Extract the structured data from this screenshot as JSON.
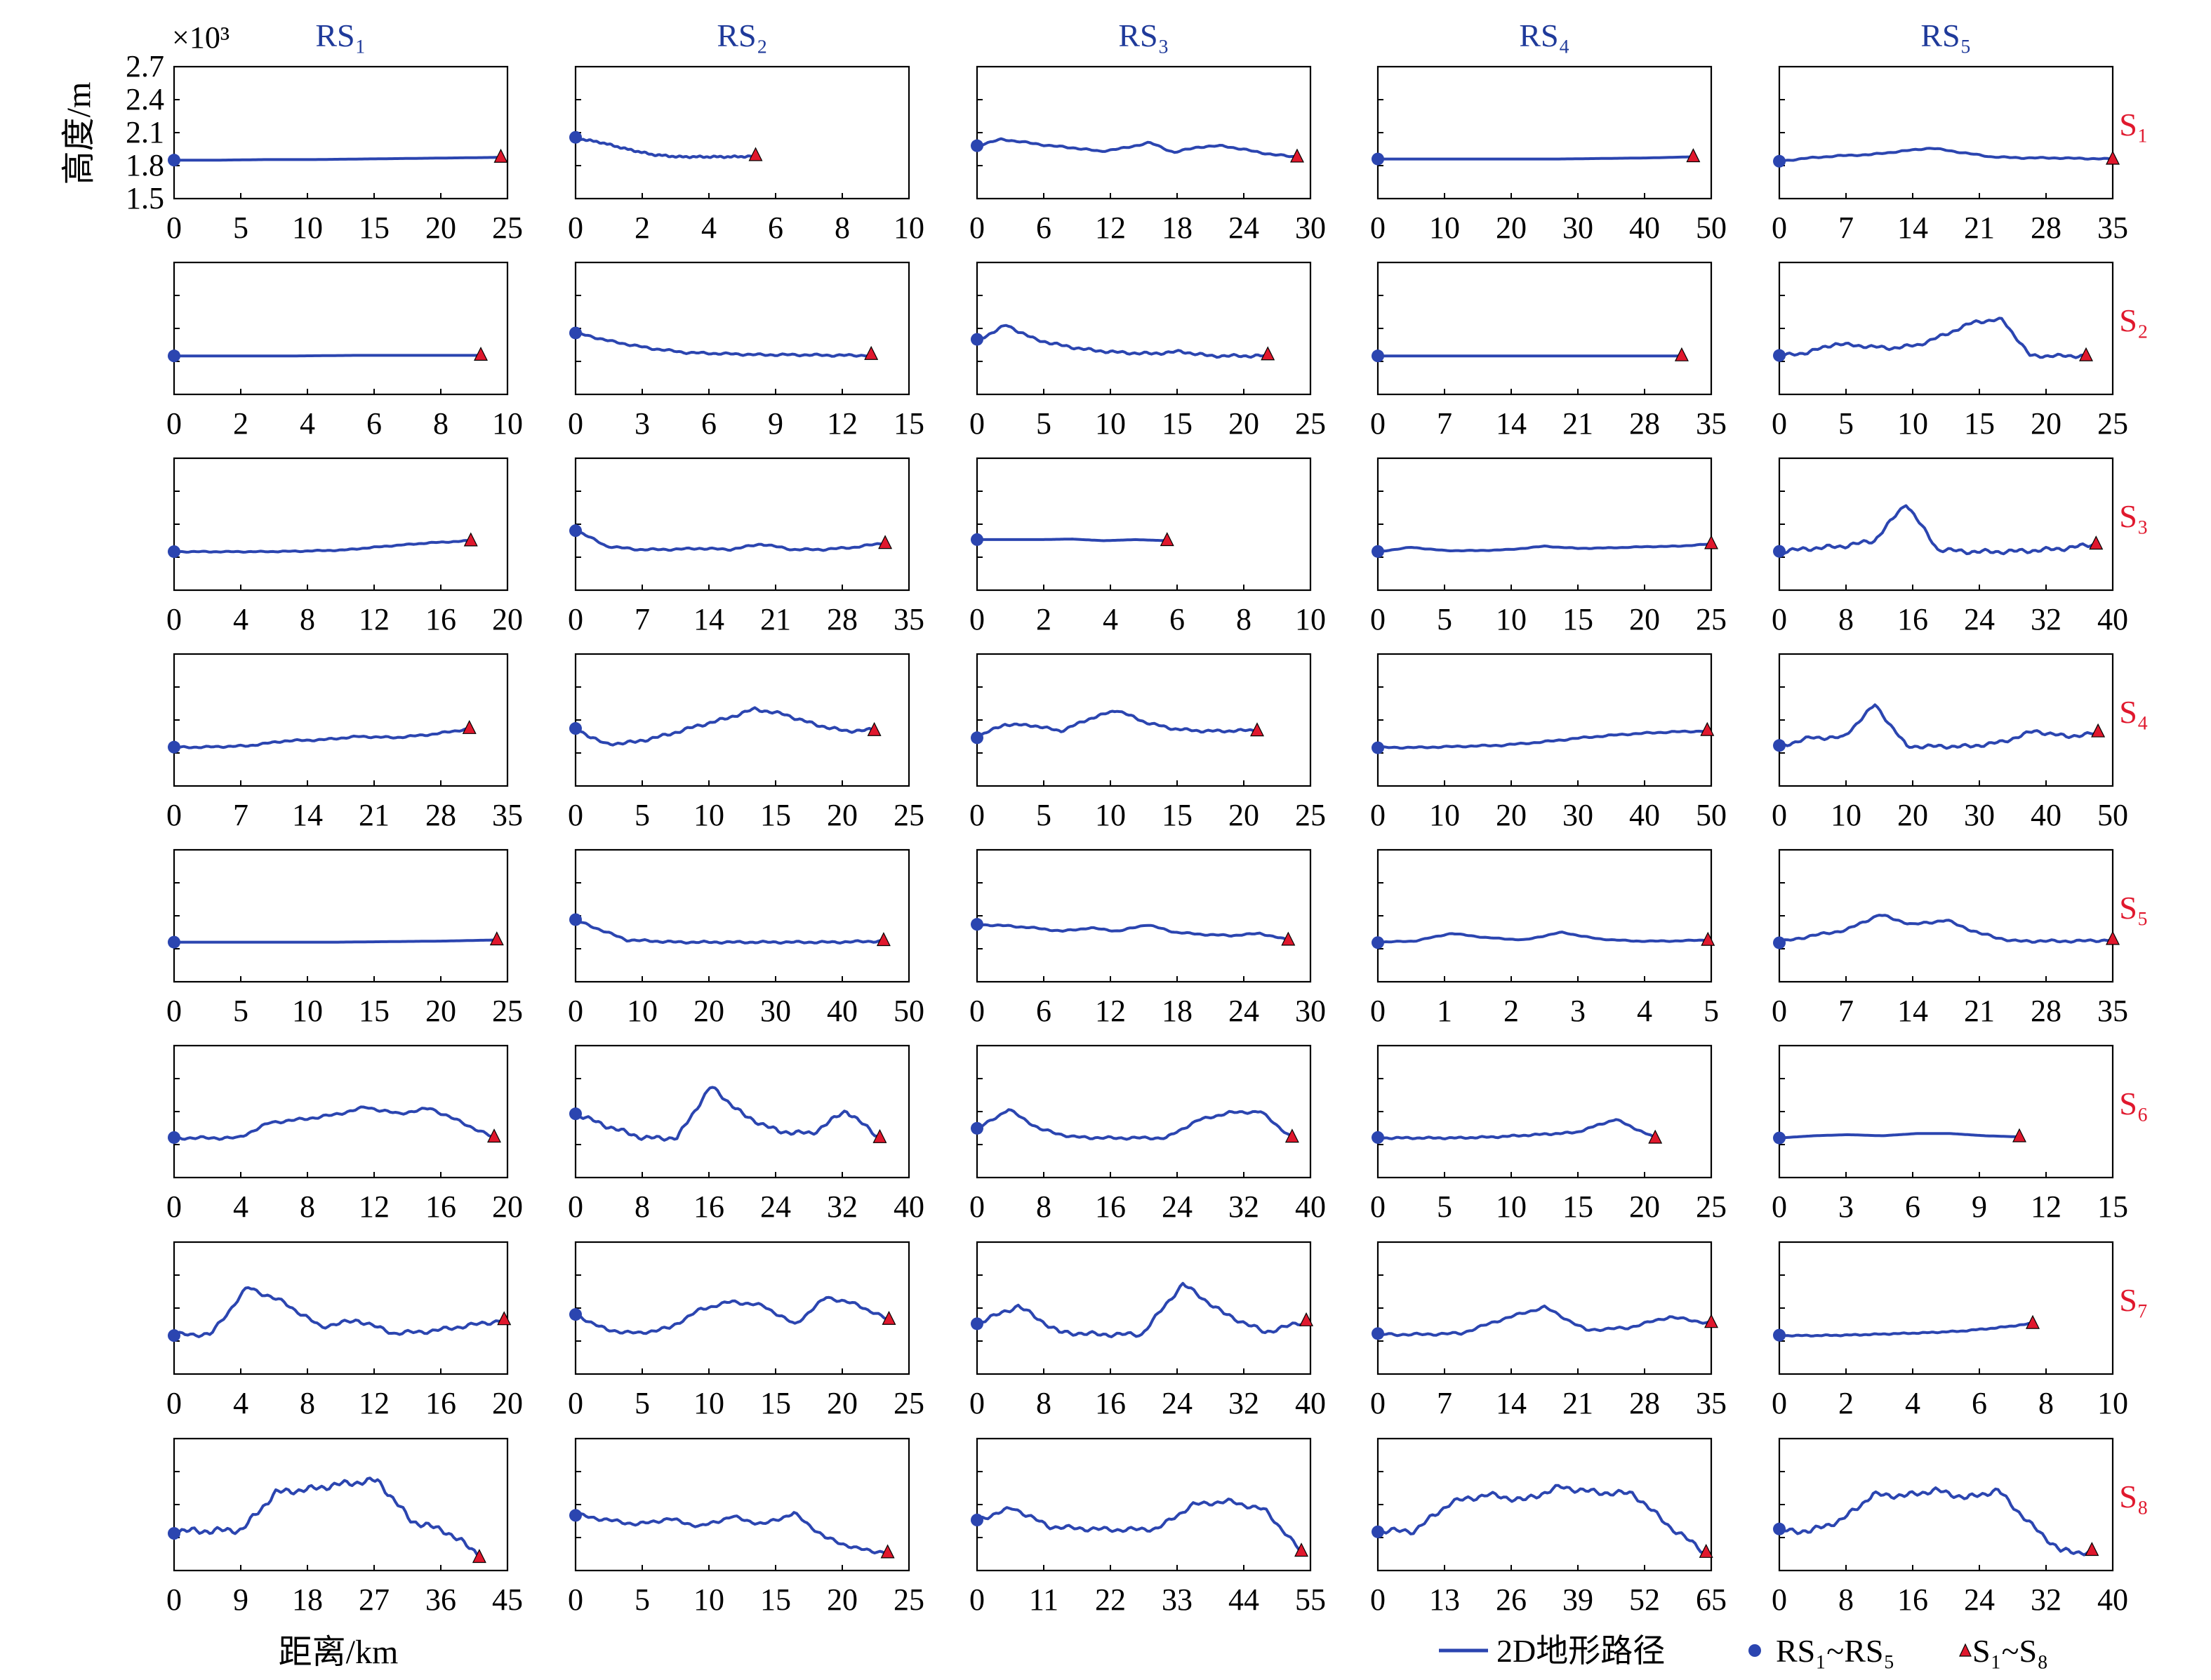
{
  "figure": {
    "y_axis_title": "高度/m",
    "y_axis_multiplier": "×10³",
    "y_ticks": [
      "2.7",
      "2.4",
      "2.1",
      "1.8",
      "1.5"
    ],
    "x_axis_title": "距离/km",
    "legend": {
      "line_label": "2D地形路径",
      "dot_label": "RS₁~RS₅",
      "triangle_label": "S₁~S₈"
    },
    "colors": {
      "line": "#2b45b0",
      "receiver": "#2b45b0",
      "source": "#e0182d",
      "col_title": "#1f3a9a",
      "row_label": "#e0182d"
    }
  },
  "chart_data": {
    "type": "line",
    "title": "",
    "xlabel": "距离/km",
    "ylabel": "高度/m",
    "ylim": [
      1500,
      2700
    ],
    "columns": [
      "RS₁",
      "RS₂",
      "RS₃",
      "RS₄",
      "RS₅"
    ],
    "rows": [
      "S₁",
      "S₂",
      "S₃",
      "S₄",
      "S₅",
      "S₆",
      "S₇",
      "S₈"
    ],
    "panels": [
      [
        {
          "xticks": [
            0,
            5,
            10,
            15,
            20,
            25
          ],
          "end": 24.5,
          "shape": [
            1850,
            1850,
            1855,
            1855,
            1860,
            1865,
            1870,
            1875
          ]
        },
        {
          "xticks": [
            0,
            2,
            4,
            6,
            8,
            10
          ],
          "end": 5.4,
          "shape": [
            2050,
            2010,
            1950,
            1900,
            1880,
            1880,
            1880,
            1885
          ]
        },
        {
          "xticks": [
            0,
            6,
            12,
            18,
            24,
            30
          ],
          "end": 28.8,
          "shape": [
            1980,
            2040,
            2010,
            1980,
            1960,
            1930,
            1960,
            2010,
            1920,
            1970,
            1980,
            1940,
            1900,
            1880
          ]
        },
        {
          "xticks": [
            0,
            10,
            20,
            30,
            40,
            50
          ],
          "end": 47.3,
          "shape": [
            1860,
            1860,
            1860,
            1860,
            1860,
            1865,
            1870,
            1880
          ]
        },
        {
          "xticks": [
            0,
            7,
            14,
            21,
            28,
            35
          ],
          "end": 35,
          "shape": [
            1840,
            1870,
            1890,
            1900,
            1930,
            1960,
            1920,
            1880,
            1870,
            1870,
            1865,
            1860
          ]
        }
      ],
      [
        {
          "xticks": [
            0,
            2,
            4,
            6,
            8,
            10
          ],
          "end": 9.2,
          "shape": [
            1850,
            1850,
            1850,
            1855,
            1855,
            1855
          ]
        },
        {
          "xticks": [
            0,
            3,
            6,
            9,
            12,
            15
          ],
          "end": 13.3,
          "shape": [
            2060,
            1980,
            1920,
            1880,
            1870,
            1860,
            1860,
            1855,
            1855
          ]
        },
        {
          "xticks": [
            0,
            5,
            10,
            15,
            20,
            25
          ],
          "end": 21.8,
          "shape": [
            1990,
            2130,
            2000,
            1940,
            1900,
            1880,
            1870,
            1890,
            1850,
            1850,
            1850
          ]
        },
        {
          "xticks": [
            0,
            7,
            14,
            21,
            28,
            35
          ],
          "end": 31.9,
          "shape": [
            1850,
            1850,
            1850,
            1850,
            1850,
            1850
          ]
        },
        {
          "xticks": [
            0,
            5,
            10,
            15,
            20,
            25
          ],
          "end": 23,
          "shape": [
            1850,
            1880,
            1960,
            1940,
            1920,
            1950,
            2050,
            2160,
            2180,
            1850,
            1850,
            1850
          ]
        }
      ],
      [
        {
          "xticks": [
            0,
            4,
            8,
            12,
            16,
            20
          ],
          "end": 17.8,
          "shape": [
            1850,
            1850,
            1850,
            1855,
            1865,
            1900,
            1930,
            1950
          ]
        },
        {
          "xticks": [
            0,
            7,
            14,
            21,
            28,
            35
          ],
          "end": 32.5,
          "shape": [
            2050,
            1900,
            1870,
            1870,
            1880,
            1870,
            1920,
            1870,
            1870,
            1890,
            1930
          ]
        },
        {
          "xticks": [
            0,
            2,
            4,
            6,
            8,
            10
          ],
          "end": 5.7,
          "shape": [
            1960,
            1960,
            1960,
            1965,
            1950,
            1960,
            1950
          ]
        },
        {
          "xticks": [
            0,
            5,
            10,
            15,
            20,
            25
          ],
          "end": 25,
          "shape": [
            1850,
            1890,
            1860,
            1860,
            1870,
            1900,
            1880,
            1885,
            1895,
            1900,
            1920
          ]
        },
        {
          "xticks": [
            0,
            8,
            16,
            24,
            32,
            40
          ],
          "end": 38,
          "shape": [
            1850,
            1880,
            1900,
            1950,
            2290,
            1870,
            1850,
            1850,
            1860,
            1880,
            1920
          ]
        }
      ],
      [
        {
          "xticks": [
            0,
            7,
            14,
            21,
            28,
            35
          ],
          "end": 31,
          "shape": [
            1850,
            1855,
            1865,
            1910,
            1920,
            1950,
            1940,
            1970,
            2020
          ]
        },
        {
          "xticks": [
            0,
            5,
            10,
            15,
            20,
            25
          ],
          "end": 22.4,
          "shape": [
            2020,
            1880,
            1900,
            1960,
            2040,
            2110,
            2200,
            2150,
            2060,
            2000,
            2010
          ]
        },
        {
          "xticks": [
            0,
            5,
            10,
            15,
            20,
            25
          ],
          "end": 21,
          "shape": [
            1950,
            2060,
            2050,
            2000,
            2110,
            2190,
            2080,
            2020,
            2000,
            2000,
            2010
          ]
        },
        {
          "xticks": [
            0,
            10,
            20,
            30,
            40,
            50
          ],
          "end": 49.4,
          "shape": [
            1850,
            1850,
            1860,
            1870,
            1900,
            1940,
            1970,
            1990,
            2000
          ]
        },
        {
          "xticks": [
            0,
            10,
            20,
            30,
            40,
            50
          ],
          "end": 47.8,
          "shape": [
            1860,
            1940,
            1940,
            2240,
            1860,
            1860,
            1860,
            1900,
            2000,
            1950,
            1980
          ]
        }
      ],
      [
        {
          "xticks": [
            0,
            5,
            10,
            15,
            20,
            25
          ],
          "end": 24.2,
          "shape": [
            1860,
            1860,
            1860,
            1860,
            1865,
            1870,
            1880
          ]
        },
        {
          "xticks": [
            0,
            10,
            20,
            30,
            40,
            50
          ],
          "end": 46.2,
          "shape": [
            2060,
            1880,
            1860,
            1860,
            1860,
            1860,
            1870
          ]
        },
        {
          "xticks": [
            0,
            6,
            12,
            18,
            24,
            30
          ],
          "end": 28,
          "shape": [
            2020,
            2010,
            1990,
            1960,
            1990,
            1960,
            2020,
            1950,
            1930,
            1920,
            1940,
            1880
          ]
        },
        {
          "xticks": [
            0,
            1,
            2,
            3,
            4,
            5
          ],
          "end": 4.95,
          "shape": [
            1860,
            1870,
            1940,
            1900,
            1880,
            1950,
            1890,
            1870,
            1870,
            1880
          ]
        },
        {
          "xticks": [
            0,
            7,
            14,
            21,
            28,
            35
          ],
          "end": 35,
          "shape": [
            1860,
            1920,
            1970,
            2110,
            2020,
            2060,
            1940,
            1870,
            1870,
            1870,
            1880
          ]
        }
      ],
      [
        {
          "xticks": [
            0,
            4,
            8,
            12,
            16,
            20
          ],
          "end": 19.2,
          "shape": [
            1860,
            1860,
            1860,
            2000,
            2030,
            2070,
            2140,
            2080,
            2130,
            2000,
            1860
          ]
        },
        {
          "xticks": [
            0,
            8,
            16,
            24,
            32,
            40
          ],
          "end": 36.5,
          "shape": [
            2080,
            1960,
            1860,
            1860,
            2330,
            2060,
            1920,
            1900,
            2110,
            1860
          ]
        },
        {
          "xticks": [
            0,
            8,
            16,
            24,
            32,
            40
          ],
          "end": 37.8,
          "shape": [
            1940,
            2120,
            1940,
            1870,
            1860,
            1860,
            1860,
            2020,
            2090,
            2100,
            1860
          ]
        },
        {
          "xticks": [
            0,
            5,
            10,
            15,
            20,
            25
          ],
          "end": 20.8,
          "shape": [
            1860,
            1860,
            1860,
            1870,
            1890,
            1910,
            2030,
            1860
          ]
        },
        {
          "xticks": [
            0,
            3,
            6,
            9,
            12,
            15
          ],
          "end": 10.8,
          "shape": [
            1860,
            1880,
            1890,
            1880,
            1900,
            1900,
            1880,
            1870
          ]
        }
      ],
      [
        {
          "xticks": [
            0,
            4,
            8,
            12,
            16,
            20
          ],
          "end": 19.8,
          "shape": [
            1860,
            1860,
            2290,
            2150,
            1930,
            1990,
            1870,
            1890,
            1940,
            1990
          ]
        },
        {
          "xticks": [
            0,
            5,
            10,
            15,
            20,
            25
          ],
          "end": 23.5,
          "shape": [
            2040,
            1900,
            1870,
            1920,
            2090,
            2160,
            2120,
            1950,
            2200,
            2130,
            1990
          ]
        },
        {
          "xticks": [
            0,
            8,
            16,
            24,
            32,
            40
          ],
          "end": 39.5,
          "shape": [
            1960,
            2120,
            1880,
            1860,
            1860,
            2320,
            2050,
            1880,
            1980
          ]
        },
        {
          "xticks": [
            0,
            7,
            14,
            21,
            28,
            35
          ],
          "end": 35,
          "shape": [
            1860,
            1860,
            1870,
            2000,
            2110,
            1900,
            1920,
            2020,
            1960
          ]
        },
        {
          "xticks": [
            0,
            2,
            4,
            6,
            8,
            10
          ],
          "end": 7.6,
          "shape": [
            1850,
            1850,
            1855,
            1865,
            1875,
            1890,
            1920,
            1960
          ]
        }
      ],
      [
        {
          "xticks": [
            0,
            9,
            18,
            27,
            36,
            45
          ],
          "end": 41.2,
          "shape": [
            1860,
            1860,
            1870,
            2210,
            2240,
            2290,
            2320,
            1950,
            1860,
            1650
          ]
        },
        {
          "xticks": [
            0,
            5,
            10,
            15,
            20,
            25
          ],
          "end": 23.4,
          "shape": [
            2010,
            1960,
            1920,
            1970,
            1900,
            1990,
            1920,
            2020,
            1800,
            1700,
            1660
          ]
        },
        {
          "xticks": [
            0,
            11,
            22,
            33,
            44,
            55
          ],
          "end": 53.5,
          "shape": [
            1960,
            2070,
            1900,
            1880,
            1870,
            1880,
            2100,
            2130,
            2050,
            1670
          ]
        },
        {
          "xticks": [
            0,
            13,
            26,
            39,
            52,
            65
          ],
          "end": 64,
          "shape": [
            1860,
            1860,
            2120,
            2190,
            2140,
            2260,
            2210,
            2200,
            1900,
            1660
          ]
        },
        {
          "xticks": [
            0,
            8,
            16,
            24,
            32,
            40
          ],
          "end": 37.5,
          "shape": [
            1860,
            1860,
            1960,
            2190,
            2180,
            2230,
            2160,
            2230,
            1930,
            1680,
            1660
          ]
        }
      ]
    ]
  }
}
